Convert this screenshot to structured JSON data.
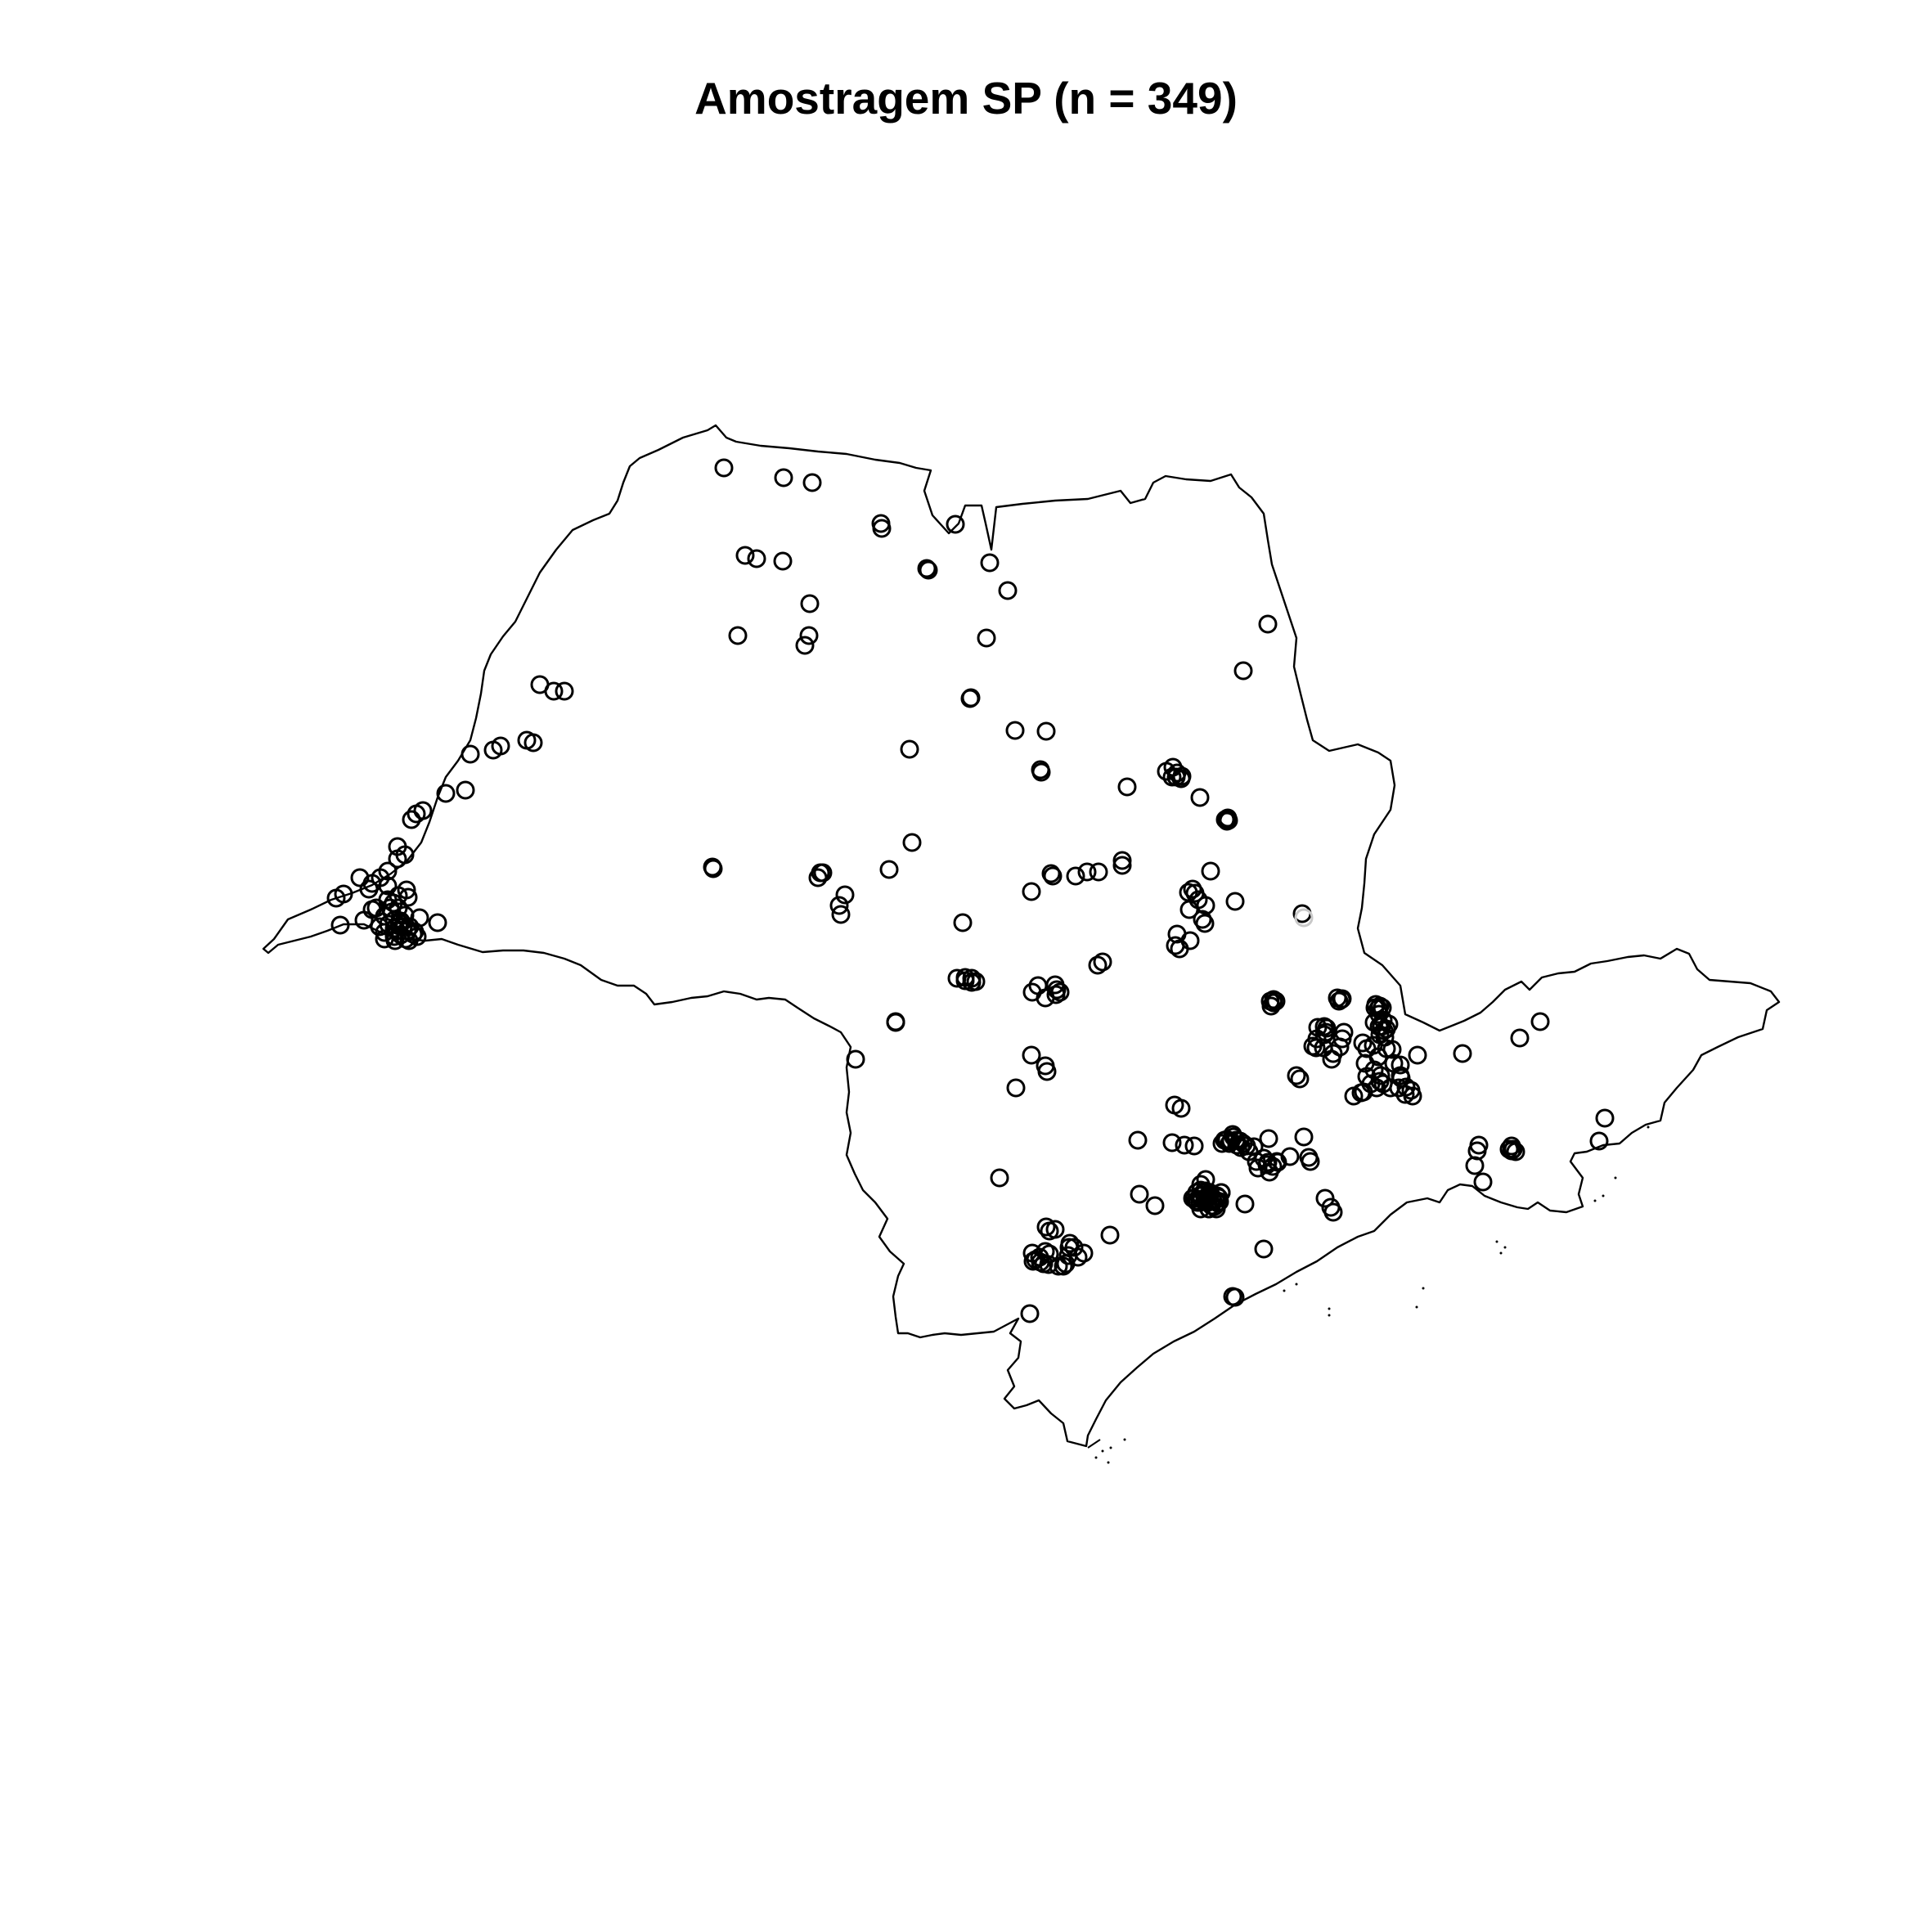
{
  "map": {
    "title": "Amostragem SP (n = 349)",
    "region": "São Paulo state",
    "stroke_color": "#000000",
    "point_color": "#000000",
    "faint_point_color": "#c8c8c8",
    "point_symbol": "open-circle"
  }
}
